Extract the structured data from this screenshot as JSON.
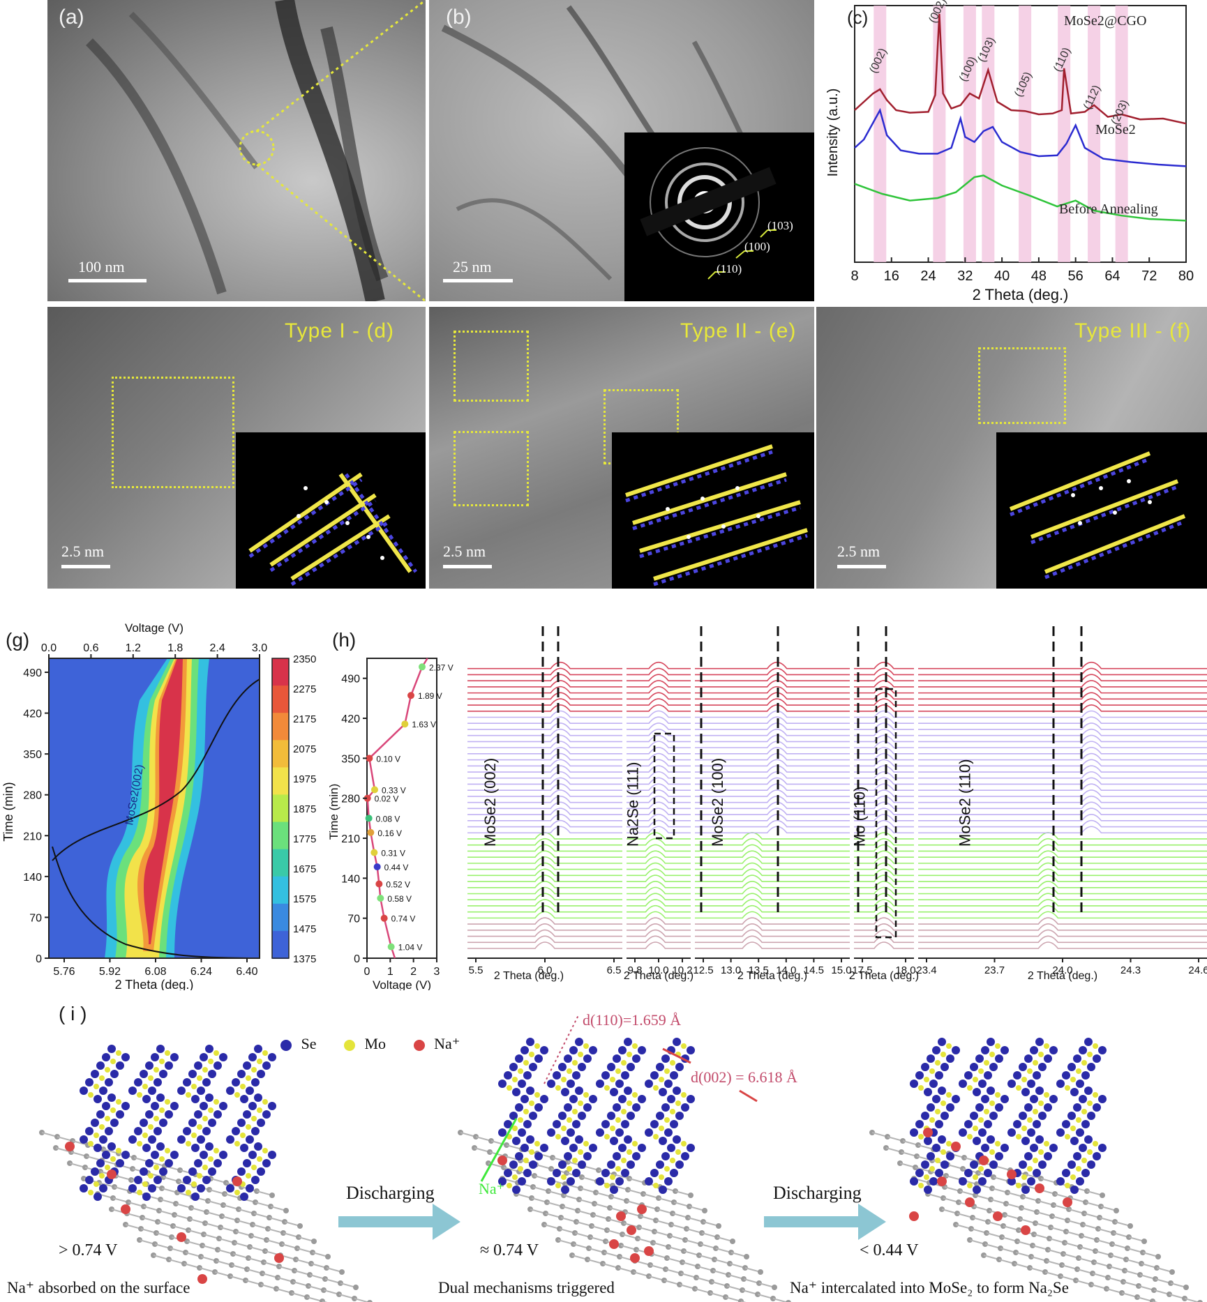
{
  "panels": {
    "a": {
      "label": "(a)",
      "scale": "100 nm"
    },
    "b": {
      "label": "(b)",
      "scale": "25 nm",
      "saed_rings": [
        "(103)",
        "(100)",
        "(110)"
      ]
    },
    "c": {
      "label": "(c)"
    },
    "d": {
      "label": "Type I - (d)",
      "scale": "2.5 nm"
    },
    "e": {
      "label": "Type II - (e)",
      "scale": "2.5 nm"
    },
    "f": {
      "label": "Type III - (f)",
      "scale": "2.5 nm"
    },
    "g": {
      "label": "(g)"
    },
    "h": {
      "label": "(h)"
    },
    "i": {
      "label": "( i )"
    }
  },
  "chart_data": [
    {
      "id": "c",
      "type": "line",
      "xlabel": "2 Theta (deg.)",
      "ylabel": "Intensity (a.u.)",
      "xlim": [
        8,
        80
      ],
      "xticks": [
        8,
        16,
        24,
        32,
        40,
        48,
        56,
        64,
        72,
        80
      ],
      "series": [
        {
          "name": "MoSe2@CGO",
          "color": "#a11f2e",
          "x": [
            8,
            10,
            12,
            13.5,
            15,
            17,
            20,
            24,
            25.5,
            26.4,
            27.2,
            29,
            31,
            33,
            35,
            37,
            39,
            42,
            45,
            48,
            51,
            53,
            53.5,
            55,
            58,
            60,
            63,
            66,
            70,
            75,
            80
          ],
          "y": [
            0.6,
            0.7,
            0.8,
            0.85,
            0.72,
            0.6,
            0.57,
            0.58,
            0.78,
            1.75,
            0.8,
            0.62,
            0.66,
            0.8,
            0.74,
            1.08,
            0.7,
            0.6,
            0.59,
            0.55,
            0.56,
            0.6,
            1.1,
            0.56,
            0.58,
            0.66,
            0.52,
            0.55,
            0.49,
            0.5,
            0.44
          ]
        },
        {
          "name": "MoSe2",
          "color": "#2b2bd0",
          "x": [
            8,
            10,
            12,
            13.5,
            15,
            18,
            22,
            26,
            29,
            31,
            32,
            34,
            36,
            38,
            40,
            44,
            48,
            52,
            54,
            56,
            58,
            62,
            68,
            74,
            80
          ],
          "y": [
            0.15,
            0.25,
            0.45,
            0.6,
            0.3,
            0.12,
            0.08,
            0.08,
            0.15,
            0.5,
            0.28,
            0.22,
            0.35,
            0.4,
            0.22,
            0.1,
            0.05,
            0.06,
            0.2,
            0.42,
            0.15,
            0.02,
            -0.02,
            -0.05,
            -0.07
          ]
        },
        {
          "name": "Before Annealing",
          "color": "#2fc43a",
          "x": [
            8,
            10,
            14,
            20,
            26,
            30,
            34,
            36,
            40,
            46,
            52,
            56,
            60,
            66,
            72,
            80
          ],
          "y": [
            -0.28,
            -0.32,
            -0.4,
            -0.48,
            -0.45,
            -0.38,
            -0.2,
            -0.18,
            -0.3,
            -0.42,
            -0.55,
            -0.48,
            -0.6,
            -0.66,
            -0.7,
            -0.72
          ]
        }
      ],
      "peaks": [
        {
          "x": 13.5,
          "label": "(002)"
        },
        {
          "x": 26.4,
          "label": "(002)"
        },
        {
          "x": 33,
          "label": "(100)"
        },
        {
          "x": 37,
          "label": "(103)"
        },
        {
          "x": 45,
          "label": "(105)"
        },
        {
          "x": 53.5,
          "label": "(110)"
        },
        {
          "x": 60,
          "label": "(112)"
        },
        {
          "x": 66,
          "label": "(203)"
        }
      ]
    },
    {
      "id": "g",
      "type": "heatmap",
      "xlabel": "2 Theta (deg.)",
      "ylabel": "Time (min)",
      "top_xlabel": "Voltage (V)",
      "xticks": [
        "5.76",
        "5.92",
        "6.08",
        "6.24",
        "6.40"
      ],
      "top_xticks": [
        "0.0",
        "0.6",
        "1.2",
        "1.8",
        "2.4",
        "3.0"
      ],
      "yticks": [
        "0",
        "70",
        "140",
        "210",
        "280",
        "350",
        "420",
        "490"
      ],
      "colorbar": [
        "2350",
        "2275",
        "2175",
        "2075",
        "1975",
        "1875",
        "1775",
        "1675",
        "1575",
        "1475",
        "1375"
      ],
      "annotation": "MoSe2(002)"
    },
    {
      "id": "h",
      "type": "line",
      "xlabel": "Voltage (V)",
      "ylabel": "Time (min)",
      "xticks": [
        "0",
        "1",
        "2",
        "3"
      ],
      "yticks": [
        "0",
        "70",
        "140",
        "210",
        "280",
        "350",
        "420",
        "490"
      ],
      "voltage_points": [
        {
          "t": 20,
          "v": 1.04,
          "label": "1.04 V"
        },
        {
          "t": 70,
          "v": 0.74,
          "label": "0.74 V"
        },
        {
          "t": 105,
          "v": 0.58,
          "label": "0.58 V"
        },
        {
          "t": 130,
          "v": 0.52,
          "label": "0.52 V"
        },
        {
          "t": 160,
          "v": 0.44,
          "label": "0.44 V"
        },
        {
          "t": 185,
          "v": 0.31,
          "label": "0.31 V"
        },
        {
          "t": 220,
          "v": 0.16,
          "label": "0.16 V"
        },
        {
          "t": 245,
          "v": 0.08,
          "label": "0.08 V"
        },
        {
          "t": 280,
          "v": 0.02,
          "label": "0.02 V"
        },
        {
          "t": 295,
          "v": 0.33,
          "label": "0.33 V"
        },
        {
          "t": 350,
          "v": 0.1,
          "label": "0.10 V"
        },
        {
          "t": 410,
          "v": 1.63,
          "label": "1.63 V"
        },
        {
          "t": 460,
          "v": 1.89,
          "label": "1.89 V"
        },
        {
          "t": 510,
          "v": 2.37,
          "label": "2.37 V"
        }
      ]
    },
    {
      "id": "h-waterfall",
      "type": "line",
      "xlabel": "2 Theta (deg.)",
      "subpanels": [
        {
          "label": "MoSe2 (002)",
          "xticks": [
            "5.5",
            "6.0",
            "6.5"
          ]
        },
        {
          "label": "Na2Se (111)",
          "xticks": [
            "9.8",
            "10.0",
            "10.2"
          ]
        },
        {
          "label": "MoSe2 (100)",
          "xticks": [
            "12.5",
            "13.0",
            "13.5",
            "14.0",
            "14.5",
            "15.0"
          ]
        },
        {
          "label": "Mo (110)",
          "xticks": [
            "17.5",
            "18.0"
          ]
        },
        {
          "label": "MoSe2 (110)",
          "xticks": [
            "23.4",
            "23.7",
            "24.0",
            "24.3",
            "24.6"
          ]
        }
      ],
      "bands": [
        {
          "color": "#c79aa6",
          "count": 5
        },
        {
          "color": "#8ef05c",
          "count": 14
        },
        {
          "color": "#b9a9f2",
          "count": 20
        },
        {
          "color": "#d2324a",
          "count": 8
        }
      ]
    }
  ],
  "schematic": {
    "legend": [
      "Se",
      "Mo",
      "Na⁺"
    ],
    "arrow1": "Discharging",
    "arrow2": "Discharging",
    "d110": "d(110)=1.659 Å",
    "d002": "d(002) = 6.618 Å",
    "na_label": "Na⁺",
    "states": [
      {
        "voltage": "> 0.74 V",
        "caption": "Na⁺ absorbed on the surface"
      },
      {
        "voltage": "≈ 0.74 V",
        "caption": "Dual mechanisms triggered"
      },
      {
        "voltage": "< 0.44 V",
        "caption": "Na⁺ intercalated into MoSe₂ to form Na₂Se"
      }
    ]
  }
}
